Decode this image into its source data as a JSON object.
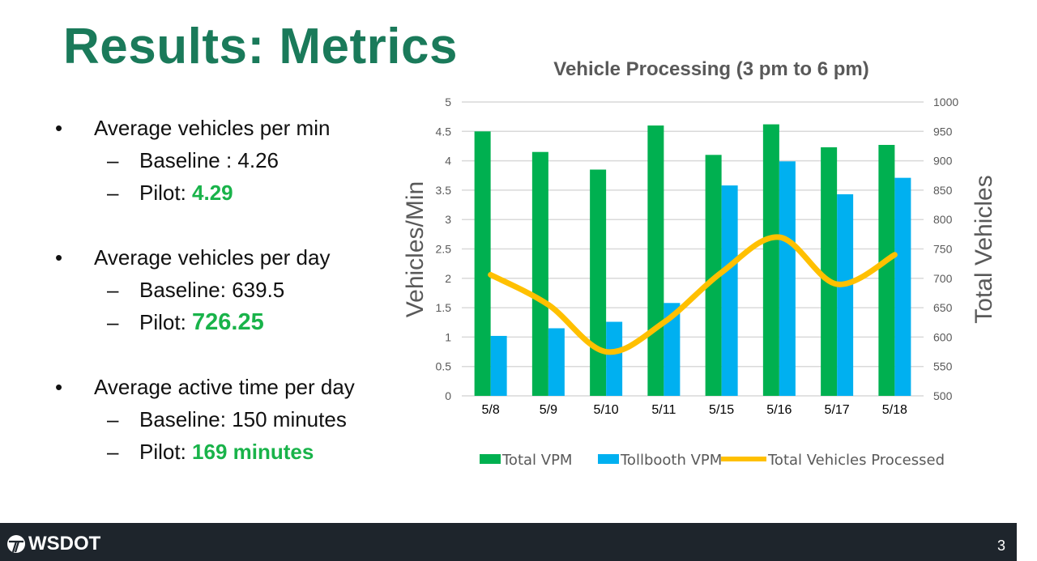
{
  "slide": {
    "title": "Results: Metrics",
    "page_number": "3",
    "logo_text": "WSDOT"
  },
  "bullets": [
    {
      "label": "Average vehicles per min",
      "items": [
        {
          "prefix": "Baseline : ",
          "value": "4.26",
          "highlight": false
        },
        {
          "prefix": "Pilot: ",
          "value": "4.29",
          "highlight": true
        }
      ]
    },
    {
      "label": "Average vehicles per day",
      "items": [
        {
          "prefix": "Baseline: ",
          "value": "639.5",
          "highlight": false
        },
        {
          "prefix": "Pilot: ",
          "value": "726.25",
          "highlight": true
        }
      ]
    },
    {
      "label": "Average active time per day",
      "items": [
        {
          "prefix": "Baseline: ",
          "value": "150 minutes",
          "highlight": false
        },
        {
          "prefix": "Pilot: ",
          "value": "169 minutes",
          "highlight": true
        }
      ]
    }
  ],
  "symbols": {
    "bullet": "•",
    "dash": "–"
  },
  "colors": {
    "title": "#1a7a5a",
    "highlight": "#19b34a",
    "total_vpm": "#00b050",
    "tollbooth_vpm": "#00b0f0",
    "total_vehicles": "#ffc000",
    "footer": "#1e252c"
  },
  "chart_data": {
    "type": "bar",
    "title": "Vehicle Processing (3 pm to 6 pm)",
    "categories": [
      "5/8",
      "5/9",
      "5/10",
      "5/11",
      "5/15",
      "5/16",
      "5/17",
      "5/18"
    ],
    "ylabel": "Vehicles/Min",
    "y2label": "Total Vehicles",
    "ylim": [
      0,
      5
    ],
    "y2lim": [
      500,
      1000
    ],
    "yticks": [
      "0",
      "0.5",
      "1",
      "1.5",
      "2",
      "2.5",
      "3",
      "3.5",
      "4",
      "4.5",
      "5"
    ],
    "y2ticks": [
      "500",
      "550",
      "600",
      "650",
      "700",
      "750",
      "800",
      "850",
      "900",
      "950",
      "1000"
    ],
    "grid": true,
    "legend_position": "bottom",
    "series": [
      {
        "name": "Total VPM",
        "type": "bar",
        "axis": "left",
        "values": [
          4.5,
          4.15,
          3.85,
          4.6,
          4.1,
          4.62,
          4.23,
          4.27
        ]
      },
      {
        "name": "Tollbooth VPM",
        "type": "bar",
        "axis": "left",
        "values": [
          1.02,
          1.15,
          1.26,
          1.58,
          3.58,
          3.99,
          3.43,
          3.71
        ]
      },
      {
        "name": "Total Vehicles Processed",
        "type": "line",
        "axis": "right",
        "smooth": true,
        "values": [
          706,
          655,
          575,
          625,
          710,
          770,
          690,
          740
        ]
      }
    ]
  }
}
